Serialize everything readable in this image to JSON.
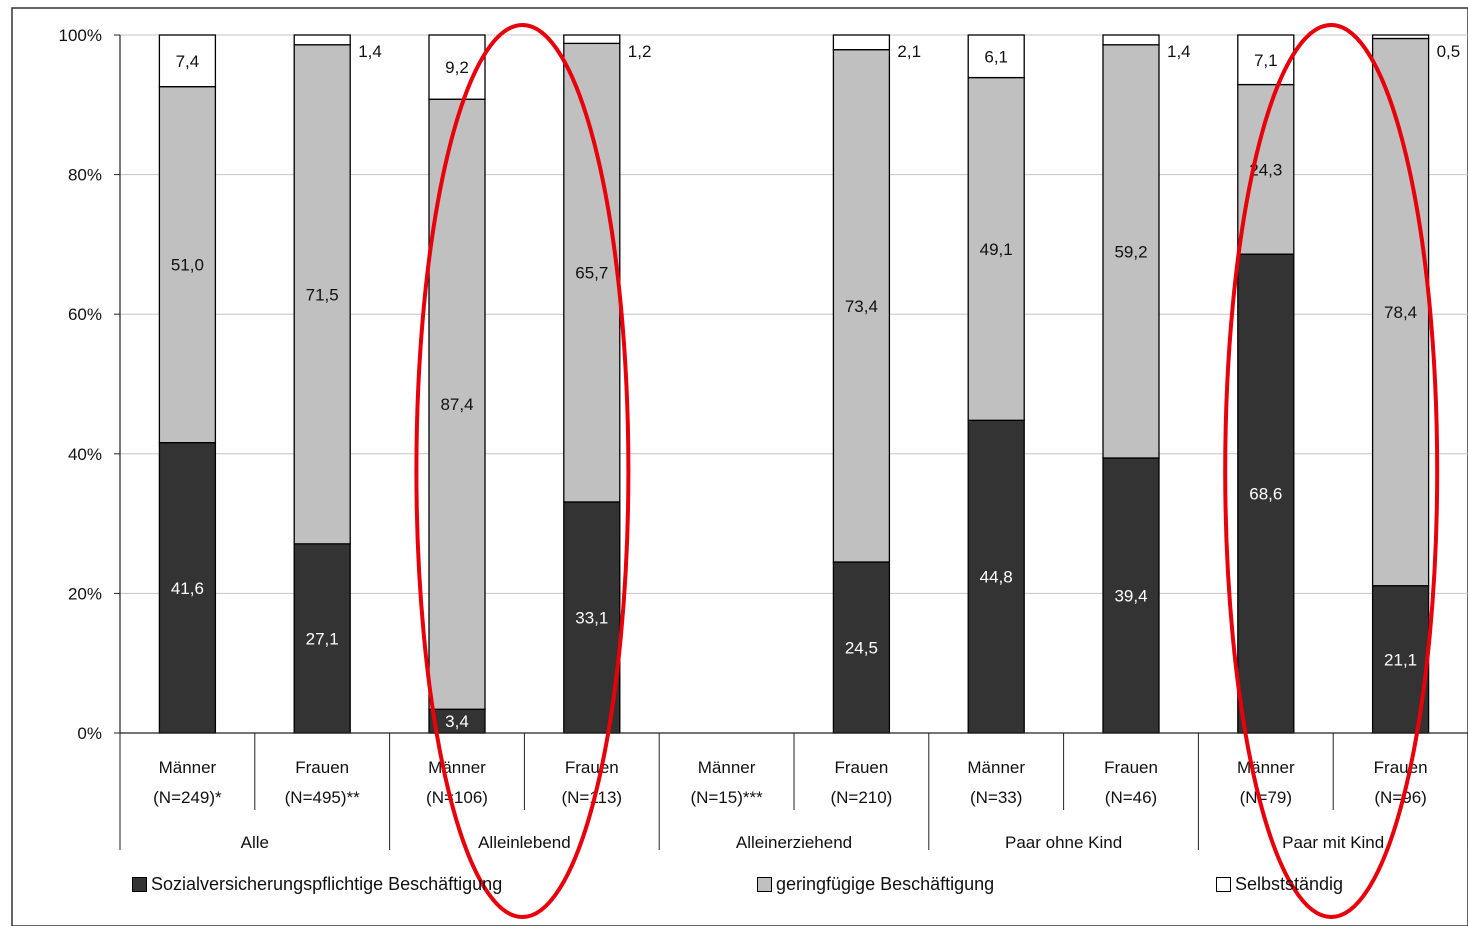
{
  "chart_data": {
    "type": "bar",
    "stacked": true,
    "ylim": [
      0,
      100
    ],
    "yticks": [
      "0%",
      "20%",
      "40%",
      "60%",
      "80%",
      "100%"
    ],
    "grid": true,
    "legend_position": "bottom",
    "groups": [
      "Alle",
      "Alleinlebend",
      "Alleinerziehend",
      "Paar ohne Kind",
      "Paar mit Kind"
    ],
    "bars": [
      {
        "group": "Alle",
        "label": "Männer",
        "n": "(N=249)*"
      },
      {
        "group": "Alle",
        "label": "Frauen",
        "n": "(N=495)**"
      },
      {
        "group": "Alleinlebend",
        "label": "Männer",
        "n": "(N=106)"
      },
      {
        "group": "Alleinlebend",
        "label": "Frauen",
        "n": "(N=113)"
      },
      {
        "group": "Alleinerziehend",
        "label": "Männer",
        "n": "(N=15)***"
      },
      {
        "group": "Alleinerziehend",
        "label": "Frauen",
        "n": "(N=210)"
      },
      {
        "group": "Paar ohne Kind",
        "label": "Männer",
        "n": "(N=33)"
      },
      {
        "group": "Paar ohne Kind",
        "label": "Frauen",
        "n": "(N=46)"
      },
      {
        "group": "Paar mit Kind",
        "label": "Männer",
        "n": "(N=79)"
      },
      {
        "group": "Paar mit Kind",
        "label": "Frauen",
        "n": "(N=96)"
      }
    ],
    "series": [
      {
        "name": "Sozialversicherungspflichtige Beschäftigung",
        "color": "#333333",
        "values": [
          41.6,
          27.1,
          3.4,
          33.1,
          null,
          24.5,
          44.8,
          39.4,
          68.6,
          21.1
        ],
        "labels": [
          "41,6",
          "27,1",
          "3,4",
          "33,1",
          "",
          "24,5",
          "44,8",
          "39,4",
          "68,6",
          "21,1"
        ]
      },
      {
        "name": "geringfügige Beschäftigung",
        "color": "#c0c0c0",
        "values": [
          51.0,
          71.5,
          87.4,
          65.7,
          null,
          73.4,
          49.1,
          59.2,
          24.3,
          78.4
        ],
        "labels": [
          "51,0",
          "71,5",
          "87,4",
          "65,7",
          "",
          "73,4",
          "49,1",
          "59,2",
          "24,3",
          "78,4"
        ]
      },
      {
        "name": "Selbstständig",
        "color": "#ffffff",
        "values": [
          7.4,
          1.4,
          9.2,
          1.2,
          null,
          2.1,
          6.1,
          1.4,
          7.1,
          0.5
        ],
        "labels": [
          "7,4",
          "1,4",
          "9,2",
          "1,2",
          "",
          "2,1",
          "6,1",
          "1,4",
          "7,1",
          "0,5"
        ]
      }
    ],
    "highlights": [
      {
        "shape": "ellipse",
        "group": "Alleinlebend",
        "color": "#e8000b"
      },
      {
        "shape": "ellipse",
        "group": "Paar mit Kind",
        "color": "#e8000b"
      }
    ]
  }
}
